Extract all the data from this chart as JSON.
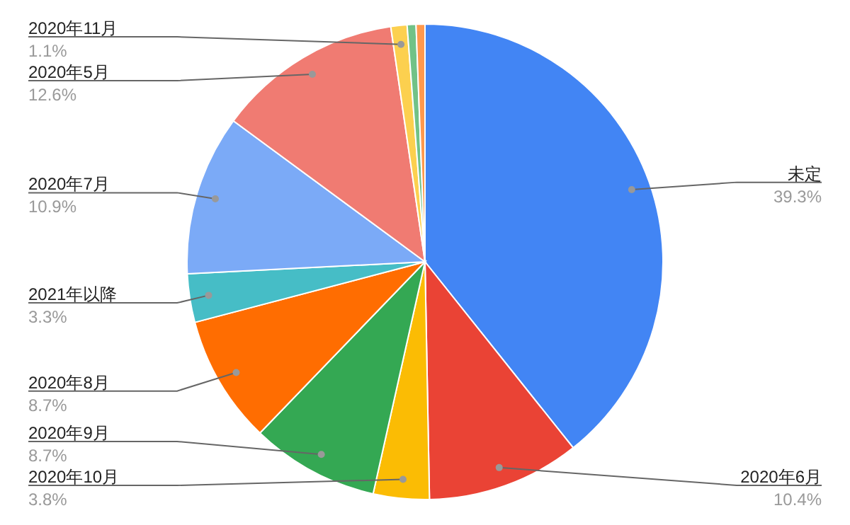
{
  "chart_data": {
    "type": "pie",
    "categories": [
      "未定",
      "2020年6月",
      "2020年10月",
      "2020年9月",
      "2020年8月",
      "2021年以降",
      "2020年7月",
      "2020年5月",
      "2020年11月",
      null,
      null
    ],
    "values": [
      39.3,
      10.4,
      3.8,
      8.7,
      8.7,
      3.3,
      10.9,
      12.6,
      1.1,
      0.6,
      0.6
    ],
    "colors": [
      "#4285f4",
      "#ea4335",
      "#fbbc04",
      "#34a853",
      "#ff6d01",
      "#46bdc6",
      "#7baaf7",
      "#f07b72",
      "#fcd04f",
      "#71c287",
      "#ff994d"
    ],
    "value_labels": [
      "39.3%",
      "10.4%",
      "3.8%",
      "8.7%",
      "8.7%",
      "3.3%",
      "10.9%",
      "12.6%",
      "1.1%",
      null,
      null
    ]
  }
}
